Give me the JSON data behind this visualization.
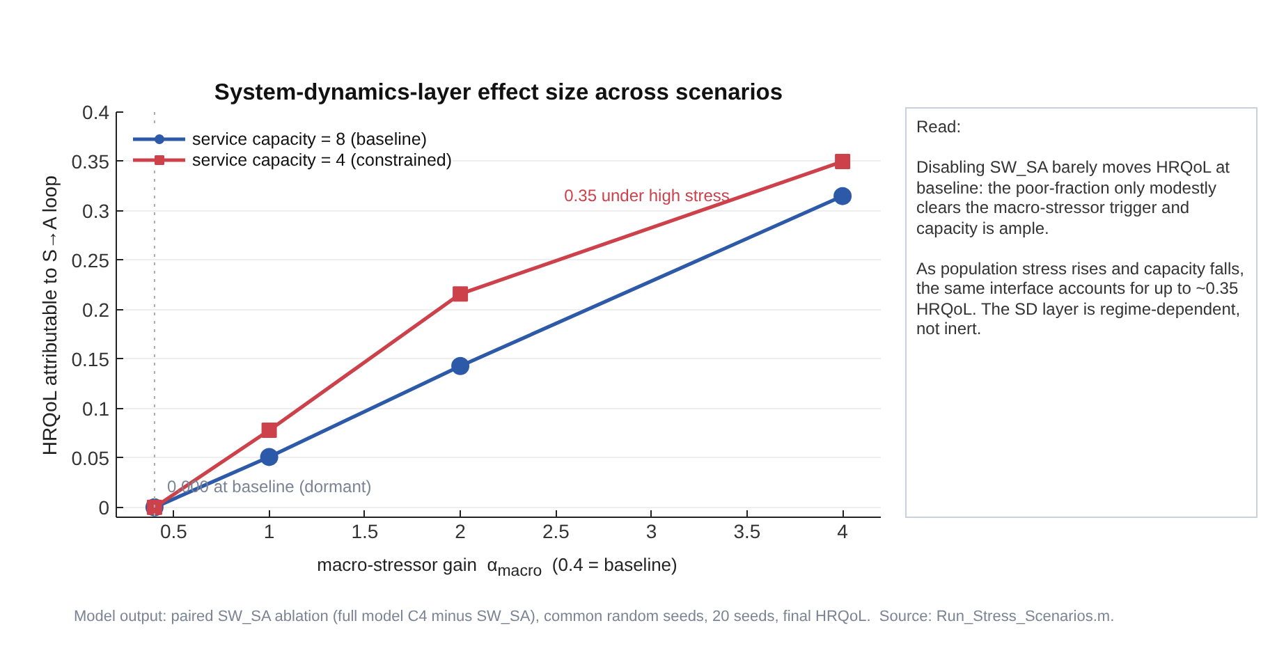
{
  "chart_data": {
    "type": "line",
    "title": "System-dynamics-layer effect size across scenarios",
    "xlabel": "macro-stressor gain  α$_{macro}$  (0.4 = baseline)",
    "ylabel": "HRQoL attributable to S→A loop",
    "x": [
      0.4,
      1,
      2,
      4
    ],
    "series": [
      {
        "name": "service capacity = 8 (baseline)",
        "color": "#2d5aa8",
        "marker": "circle",
        "values": [
          0,
          0.051,
          0.143,
          0.315
        ]
      },
      {
        "name": "service capacity = 4 (constrained)",
        "color": "#cd414b",
        "marker": "square",
        "values": [
          0,
          0.078,
          0.216,
          0.35
        ]
      }
    ],
    "xlim": [
      0.2,
      4.2
    ],
    "ylim": [
      -0.01,
      0.4
    ],
    "xticks": [
      0.5,
      1,
      1.5,
      2,
      2.5,
      3,
      3.5,
      4
    ],
    "yticks": [
      0,
      0.05,
      0.1,
      0.15,
      0.2,
      0.25,
      0.3,
      0.35,
      0.4
    ],
    "grid": "y",
    "legend": "top left",
    "line_style": "solid",
    "ref_lines": [
      {
        "axis": "x",
        "value": 0.4,
        "color": "#aaaaaa",
        "line_style": "dotted"
      }
    ],
    "annotations": [
      {
        "text": "0.000 at baseline (dormant)",
        "x": 0.4,
        "y": 0
      },
      "0.35 under high stress",
      "Read:",
      "Disabling SW_SA barely moves HRQoL at baseline: the poor-fraction only modestly clears the macro-stressor trigger and capacity is ample.",
      "As population stress rises and capacity falls, the same interface accounts for up to ~0.35 HRQoL. The SD layer is regime-dependent, not inert.",
      "Model output: paired SW_SA ablation (full model C4 minus SW_SA), common random seeds, 20 seeds, final HRQoL.  Source: Run_Stress_Scenarios.m."
    ]
  }
}
